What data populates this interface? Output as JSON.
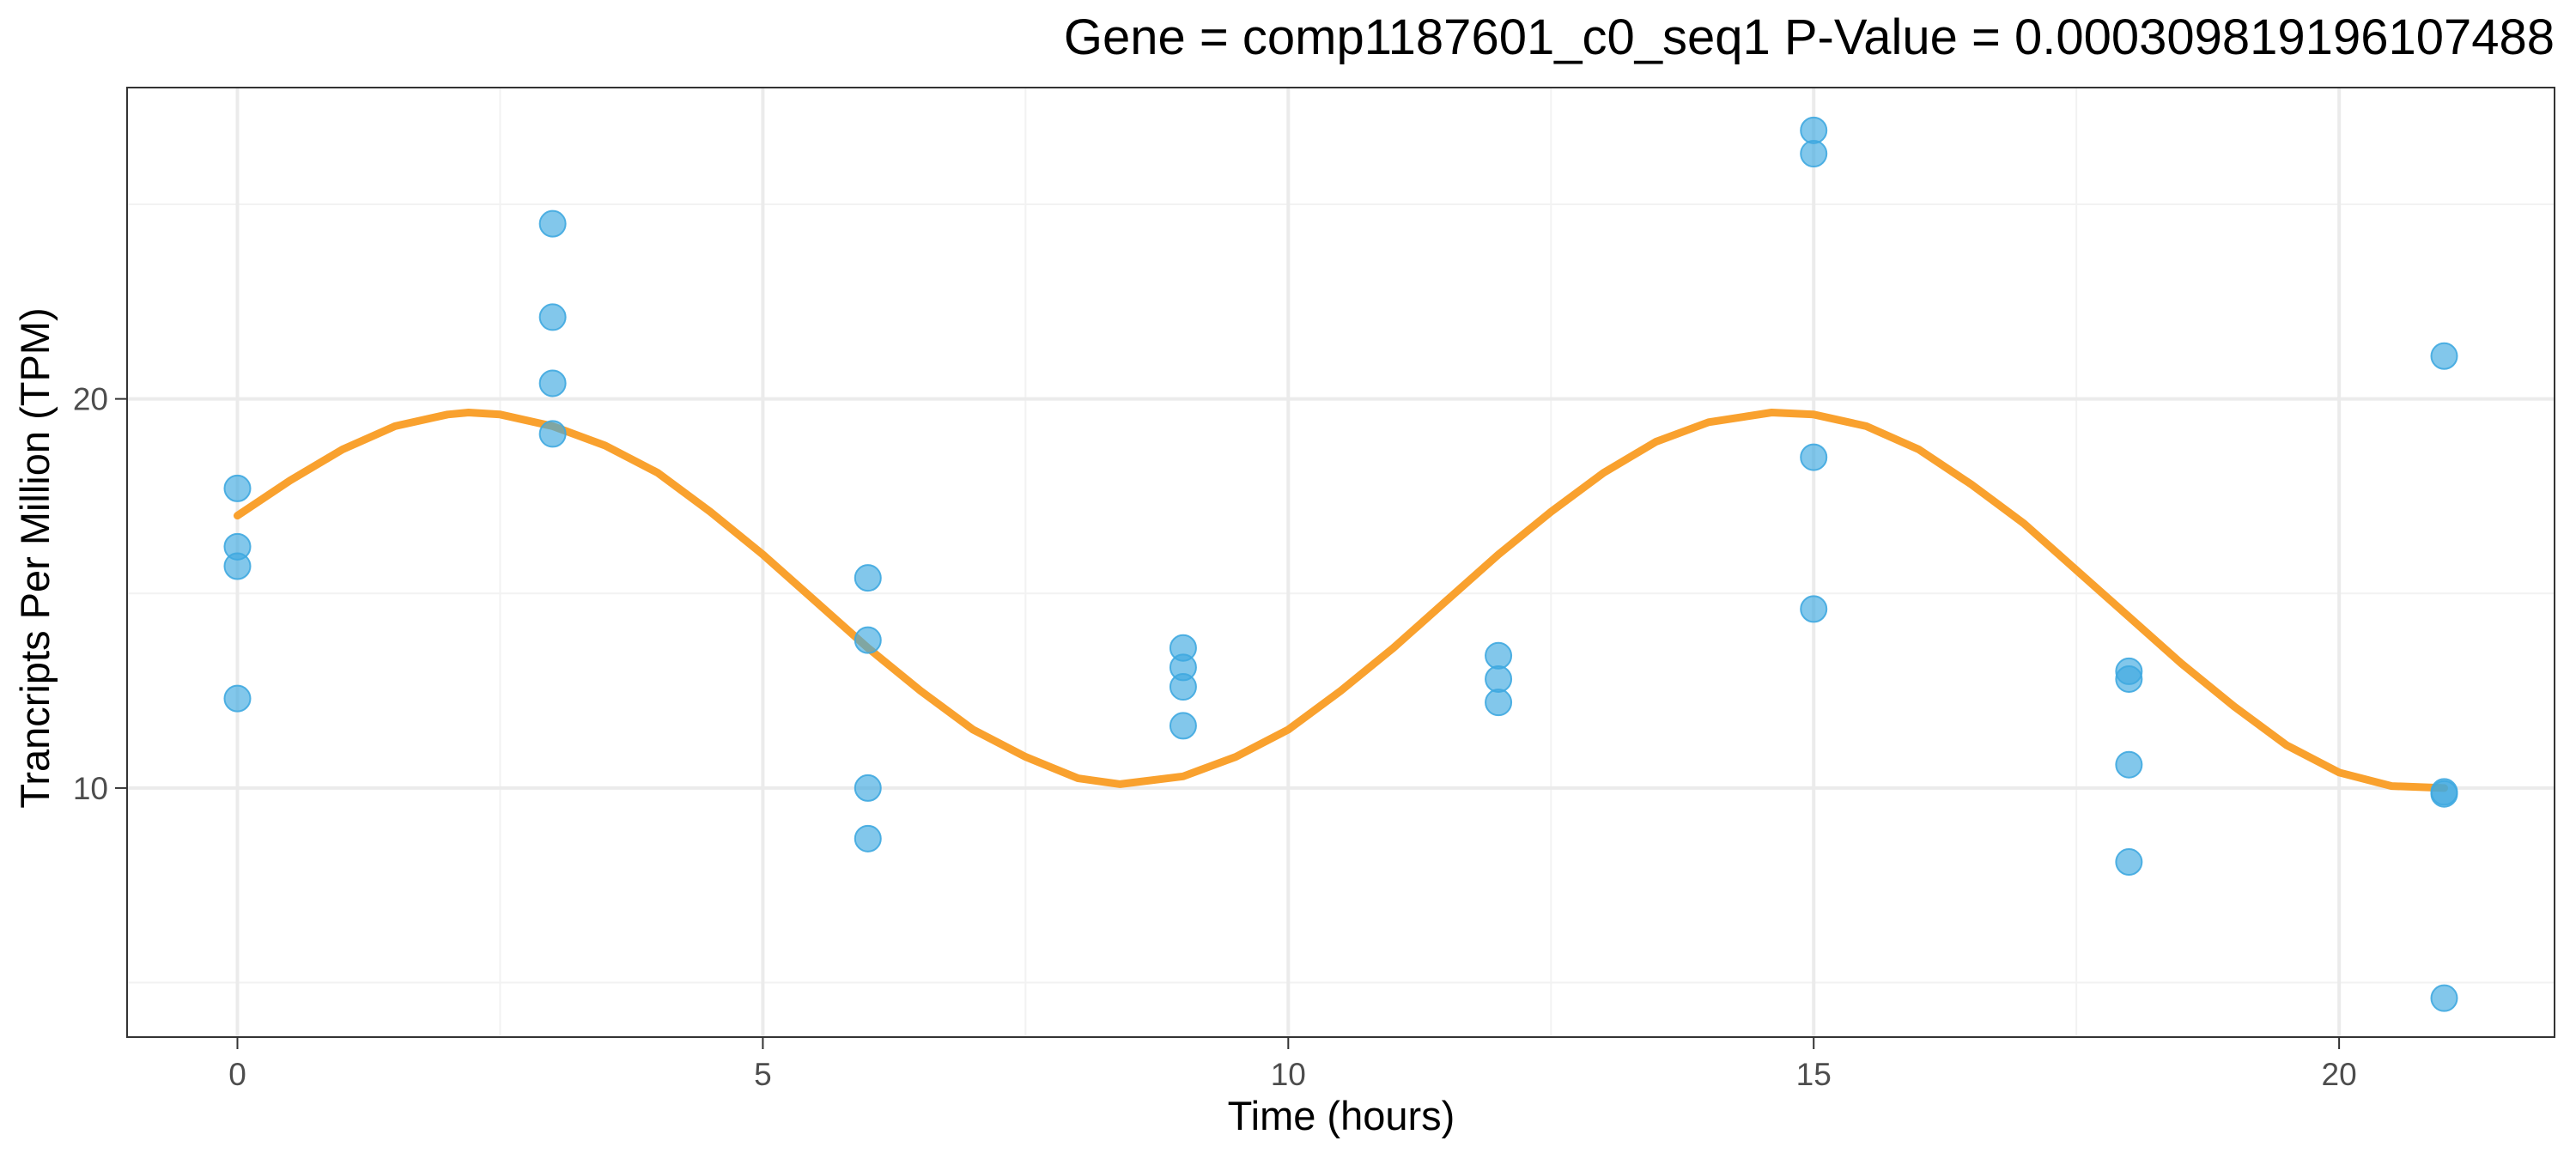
{
  "chart_data": {
    "type": "scatter",
    "title": "Gene =  comp1187601_c0_seq1  P-Value =  0.000309819196107488",
    "xlabel": "Time (hours)",
    "ylabel": "Trancripts Per Million (TPM)",
    "xlim": [
      -1.05,
      22.05
    ],
    "ylim": [
      3.6,
      28.0
    ],
    "x_major_ticks": [
      0,
      5,
      10,
      15,
      20
    ],
    "x_minor_ticks": [
      2.5,
      7.5,
      12.5,
      17.5
    ],
    "y_major_ticks": [
      10,
      20
    ],
    "y_minor_ticks": [
      5,
      15,
      25
    ],
    "x_tick_labels": [
      "0",
      "5",
      "10",
      "15",
      "20"
    ],
    "y_tick_labels": [
      "10",
      "20"
    ],
    "grid": true,
    "legend": "none",
    "points": [
      {
        "x": 0,
        "y": 17.7
      },
      {
        "x": 0,
        "y": 16.2
      },
      {
        "x": 0,
        "y": 15.7
      },
      {
        "x": 0,
        "y": 12.3
      },
      {
        "x": 3,
        "y": 24.5
      },
      {
        "x": 3,
        "y": 22.1
      },
      {
        "x": 3,
        "y": 20.4
      },
      {
        "x": 3,
        "y": 19.1
      },
      {
        "x": 6,
        "y": 15.4
      },
      {
        "x": 6,
        "y": 13.8
      },
      {
        "x": 6,
        "y": 10.0
      },
      {
        "x": 6,
        "y": 8.7
      },
      {
        "x": 9,
        "y": 13.6
      },
      {
        "x": 9,
        "y": 13.1
      },
      {
        "x": 9,
        "y": 12.6
      },
      {
        "x": 9,
        "y": 11.6
      },
      {
        "x": 12,
        "y": 13.4
      },
      {
        "x": 12,
        "y": 12.8
      },
      {
        "x": 12,
        "y": 12.2
      },
      {
        "x": 15,
        "y": 26.9
      },
      {
        "x": 15,
        "y": 26.3
      },
      {
        "x": 15,
        "y": 18.5
      },
      {
        "x": 15,
        "y": 14.6
      },
      {
        "x": 18,
        "y": 13.0
      },
      {
        "x": 18,
        "y": 12.8
      },
      {
        "x": 18,
        "y": 10.6
      },
      {
        "x": 18,
        "y": 8.1
      },
      {
        "x": 21,
        "y": 21.1
      },
      {
        "x": 21,
        "y": 9.9
      },
      {
        "x": 21,
        "y": 9.85
      },
      {
        "x": 21,
        "y": 4.6
      }
    ],
    "fit_curve": {
      "x": [
        0,
        0.5,
        1,
        1.5,
        2,
        2.2,
        2.5,
        3,
        3.5,
        4,
        4.5,
        5,
        5.5,
        6,
        6.5,
        7,
        7.5,
        8,
        8.4,
        9,
        9.5,
        10,
        10.5,
        11,
        11.5,
        12,
        12.5,
        13,
        13.5,
        14,
        14.6,
        15,
        15.5,
        16,
        16.5,
        17,
        17.5,
        18,
        18.5,
        19,
        19.5,
        20,
        20.5,
        21
      ],
      "y": [
        17.0,
        17.9,
        18.7,
        19.3,
        19.6,
        19.65,
        19.6,
        19.3,
        18.8,
        18.1,
        17.1,
        16.0,
        14.8,
        13.6,
        12.5,
        11.5,
        10.8,
        10.25,
        10.1,
        10.3,
        10.8,
        11.5,
        12.5,
        13.6,
        14.8,
        16.0,
        17.1,
        18.1,
        18.9,
        19.4,
        19.65,
        19.6,
        19.3,
        18.7,
        17.8,
        16.8,
        15.6,
        14.4,
        13.2,
        12.1,
        11.1,
        10.4,
        10.05,
        10.0
      ]
    },
    "colors": {
      "points": "#3fa9e0",
      "curve": "#f9a12e"
    }
  }
}
